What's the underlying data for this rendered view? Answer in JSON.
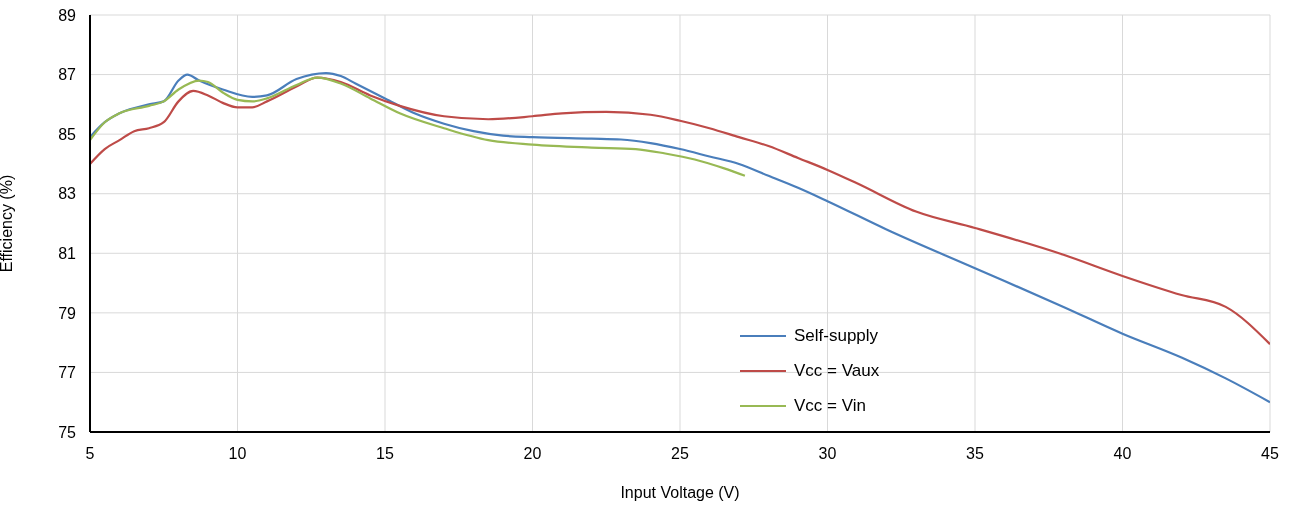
{
  "chart_data": {
    "type": "line",
    "xlabel": "Input Voltage (V)",
    "ylabel": "Efficiency (%)",
    "xlim": [
      5,
      45
    ],
    "xticks": [
      5,
      10,
      15,
      20,
      25,
      30,
      35,
      40,
      45
    ],
    "ylim": [
      75,
      89
    ],
    "yticks": [
      75,
      77,
      79,
      81,
      83,
      85,
      87,
      89
    ],
    "grid": true,
    "legend": "bottom right",
    "marker": "none",
    "line_style": "solid",
    "series": [
      {
        "name": "Self‐supply",
        "color": "#4a7ebb",
        "x": [
          5,
          5.5,
          6,
          7,
          7.5,
          8,
          8.3,
          8.7,
          9.5,
          10.5,
          11,
          12,
          13,
          13.5,
          14,
          15,
          16,
          17,
          18,
          19,
          20,
          22,
          23,
          24,
          25,
          26,
          27,
          28,
          29,
          30,
          32,
          35,
          38,
          40,
          42,
          43.5,
          45
        ],
        "values": [
          84.9,
          85.4,
          85.7,
          86.0,
          86.1,
          86.8,
          87.0,
          86.8,
          86.5,
          86.25,
          86.3,
          86.85,
          87.05,
          86.95,
          86.7,
          86.2,
          85.7,
          85.35,
          85.1,
          84.95,
          84.9,
          84.85,
          84.82,
          84.7,
          84.5,
          84.25,
          84.0,
          83.6,
          83.2,
          82.75,
          81.8,
          80.5,
          79.2,
          78.3,
          77.5,
          76.8,
          76.0
        ]
      },
      {
        "name": "Vcc = Vaux",
        "color": "#be4b48",
        "x": [
          5,
          5.5,
          6,
          6.5,
          7,
          7.5,
          8,
          8.5,
          9,
          9.5,
          10,
          10.5,
          11,
          12,
          12.7,
          13.5,
          14.5,
          15.5,
          17,
          18.5,
          20,
          21,
          22.5,
          24,
          25,
          26,
          27,
          28,
          29,
          30,
          31,
          33,
          35,
          38,
          40,
          42,
          43.5,
          45
        ],
        "values": [
          84.0,
          84.5,
          84.8,
          85.1,
          85.2,
          85.4,
          86.1,
          86.45,
          86.3,
          86.05,
          85.9,
          85.9,
          86.1,
          86.6,
          86.9,
          86.75,
          86.3,
          85.95,
          85.6,
          85.5,
          85.6,
          85.7,
          85.75,
          85.65,
          85.45,
          85.2,
          84.9,
          84.6,
          84.2,
          83.8,
          83.35,
          82.4,
          81.85,
          80.95,
          80.24,
          79.6,
          79.2,
          77.95
        ]
      },
      {
        "name": "Vcc = Vin",
        "color": "#98b954",
        "x": [
          5,
          5.5,
          6,
          7,
          7.5,
          8,
          8.7,
          9,
          9.5,
          10,
          10.5,
          11,
          12,
          12.7,
          13.5,
          14.5,
          15.5,
          17,
          18.5,
          20,
          22,
          23.5,
          24.5,
          25.5,
          26.5,
          27.2
        ],
        "values": [
          84.8,
          85.4,
          85.7,
          85.95,
          86.1,
          86.5,
          86.8,
          86.75,
          86.4,
          86.15,
          86.1,
          86.2,
          86.65,
          86.9,
          86.7,
          86.2,
          85.7,
          85.2,
          84.8,
          84.65,
          84.55,
          84.5,
          84.35,
          84.15,
          83.85,
          83.6
        ]
      }
    ]
  }
}
